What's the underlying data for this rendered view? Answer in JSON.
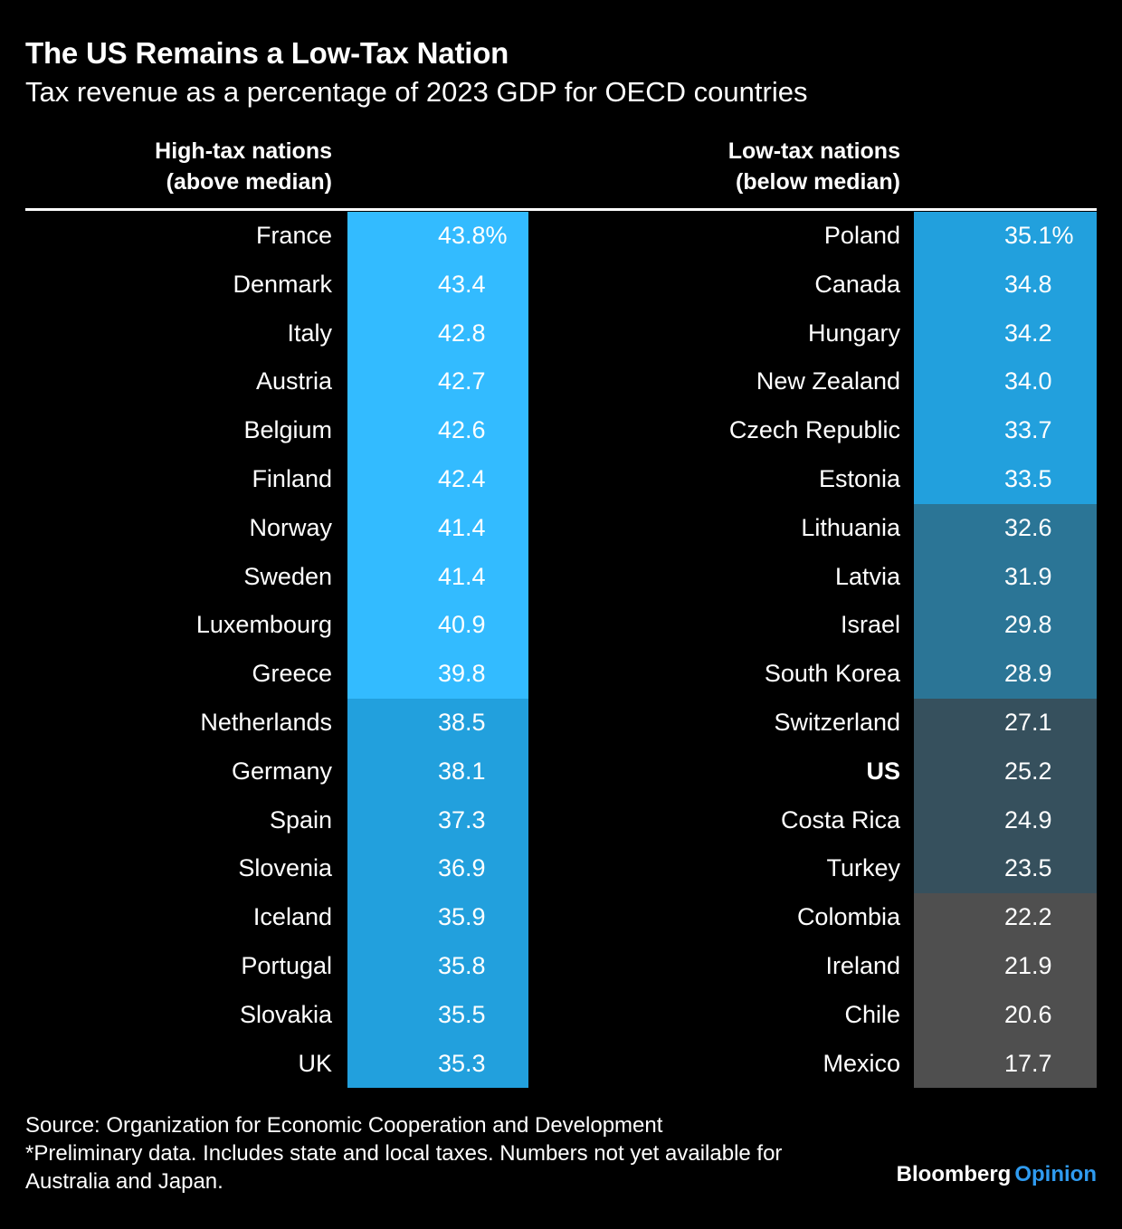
{
  "title": "The US Remains a Low-Tax Nation",
  "subtitle": "Tax revenue as a percentage of 2023 GDP for OECD countries",
  "colors": {
    "background": "#000000",
    "text": "#ffffff",
    "tier_1": "#33bbff",
    "tier_2": "#22a0dd",
    "tier_3": "#2b7596",
    "tier_4": "#36505d",
    "tier_5": "#4f4f4f",
    "brand_accent": "#2f9bf0"
  },
  "footer": {
    "source": "Source: Organization for Economic Cooperation and Development",
    "note_line1": "*Preliminary data. Includes state and local taxes. Numbers not yet available for",
    "note_line2": "Australia and Japan.",
    "brand": "Bloomberg",
    "brand_accent": "Opinion"
  },
  "chart_data": {
    "type": "table",
    "title": "The US Remains a Low-Tax Nation",
    "subtitle": "Tax revenue as a percentage of 2023 GDP for OECD countries",
    "unit": "%",
    "groups": [
      {
        "header_line1": "High-tax nations",
        "header_line2": "(above median)",
        "rows": [
          {
            "country": "France",
            "value": 43.8,
            "label": "43.8%",
            "tier": 1
          },
          {
            "country": "Denmark",
            "value": 43.4,
            "label": "43.4",
            "tier": 1
          },
          {
            "country": "Italy",
            "value": 42.8,
            "label": "42.8",
            "tier": 1
          },
          {
            "country": "Austria",
            "value": 42.7,
            "label": "42.7",
            "tier": 1
          },
          {
            "country": "Belgium",
            "value": 42.6,
            "label": "42.6",
            "tier": 1
          },
          {
            "country": "Finland",
            "value": 42.4,
            "label": "42.4",
            "tier": 1
          },
          {
            "country": "Norway",
            "value": 41.4,
            "label": "41.4",
            "tier": 1
          },
          {
            "country": "Sweden",
            "value": 41.4,
            "label": "41.4",
            "tier": 1
          },
          {
            "country": "Luxembourg",
            "value": 40.9,
            "label": "40.9",
            "tier": 1
          },
          {
            "country": "Greece",
            "value": 39.8,
            "label": "39.8",
            "tier": 1
          },
          {
            "country": "Netherlands",
            "value": 38.5,
            "label": "38.5",
            "tier": 2
          },
          {
            "country": "Germany",
            "value": 38.1,
            "label": "38.1",
            "tier": 2
          },
          {
            "country": "Spain",
            "value": 37.3,
            "label": "37.3",
            "tier": 2
          },
          {
            "country": "Slovenia",
            "value": 36.9,
            "label": "36.9",
            "tier": 2
          },
          {
            "country": "Iceland",
            "value": 35.9,
            "label": "35.9",
            "tier": 2
          },
          {
            "country": "Portugal",
            "value": 35.8,
            "label": "35.8",
            "tier": 2
          },
          {
            "country": "Slovakia",
            "value": 35.5,
            "label": "35.5",
            "tier": 2
          },
          {
            "country": "UK",
            "value": 35.3,
            "label": "35.3",
            "tier": 2
          }
        ]
      },
      {
        "header_line1": "Low-tax nations",
        "header_line2": "(below median)",
        "rows": [
          {
            "country": "Poland",
            "value": 35.1,
            "label": "35.1%",
            "tier": 2
          },
          {
            "country": "Canada",
            "value": 34.8,
            "label": "34.8",
            "tier": 2
          },
          {
            "country": "Hungary",
            "value": 34.2,
            "label": "34.2",
            "tier": 2
          },
          {
            "country": "New Zealand",
            "value": 34.0,
            "label": "34.0",
            "tier": 2
          },
          {
            "country": "Czech Republic",
            "value": 33.7,
            "label": "33.7",
            "tier": 2
          },
          {
            "country": "Estonia",
            "value": 33.5,
            "label": "33.5",
            "tier": 2
          },
          {
            "country": "Lithuania",
            "value": 32.6,
            "label": "32.6",
            "tier": 3
          },
          {
            "country": "Latvia",
            "value": 31.9,
            "label": "31.9",
            "tier": 3
          },
          {
            "country": "Israel",
            "value": 29.8,
            "label": "29.8",
            "tier": 3
          },
          {
            "country": "South Korea",
            "value": 28.9,
            "label": "28.9",
            "tier": 3
          },
          {
            "country": "Switzerland",
            "value": 27.1,
            "label": "27.1",
            "tier": 4
          },
          {
            "country": "US",
            "value": 25.2,
            "label": "25.2",
            "tier": 4,
            "bold": true
          },
          {
            "country": "Costa Rica",
            "value": 24.9,
            "label": "24.9",
            "tier": 4
          },
          {
            "country": "Turkey",
            "value": 23.5,
            "label": "23.5",
            "tier": 4
          },
          {
            "country": "Colombia",
            "value": 22.2,
            "label": "22.2",
            "tier": 5
          },
          {
            "country": "Ireland",
            "value": 21.9,
            "label": "21.9",
            "tier": 5
          },
          {
            "country": "Chile",
            "value": 20.6,
            "label": "20.6",
            "tier": 5
          },
          {
            "country": "Mexico",
            "value": 17.7,
            "label": "17.7",
            "tier": 5
          }
        ]
      }
    ]
  }
}
